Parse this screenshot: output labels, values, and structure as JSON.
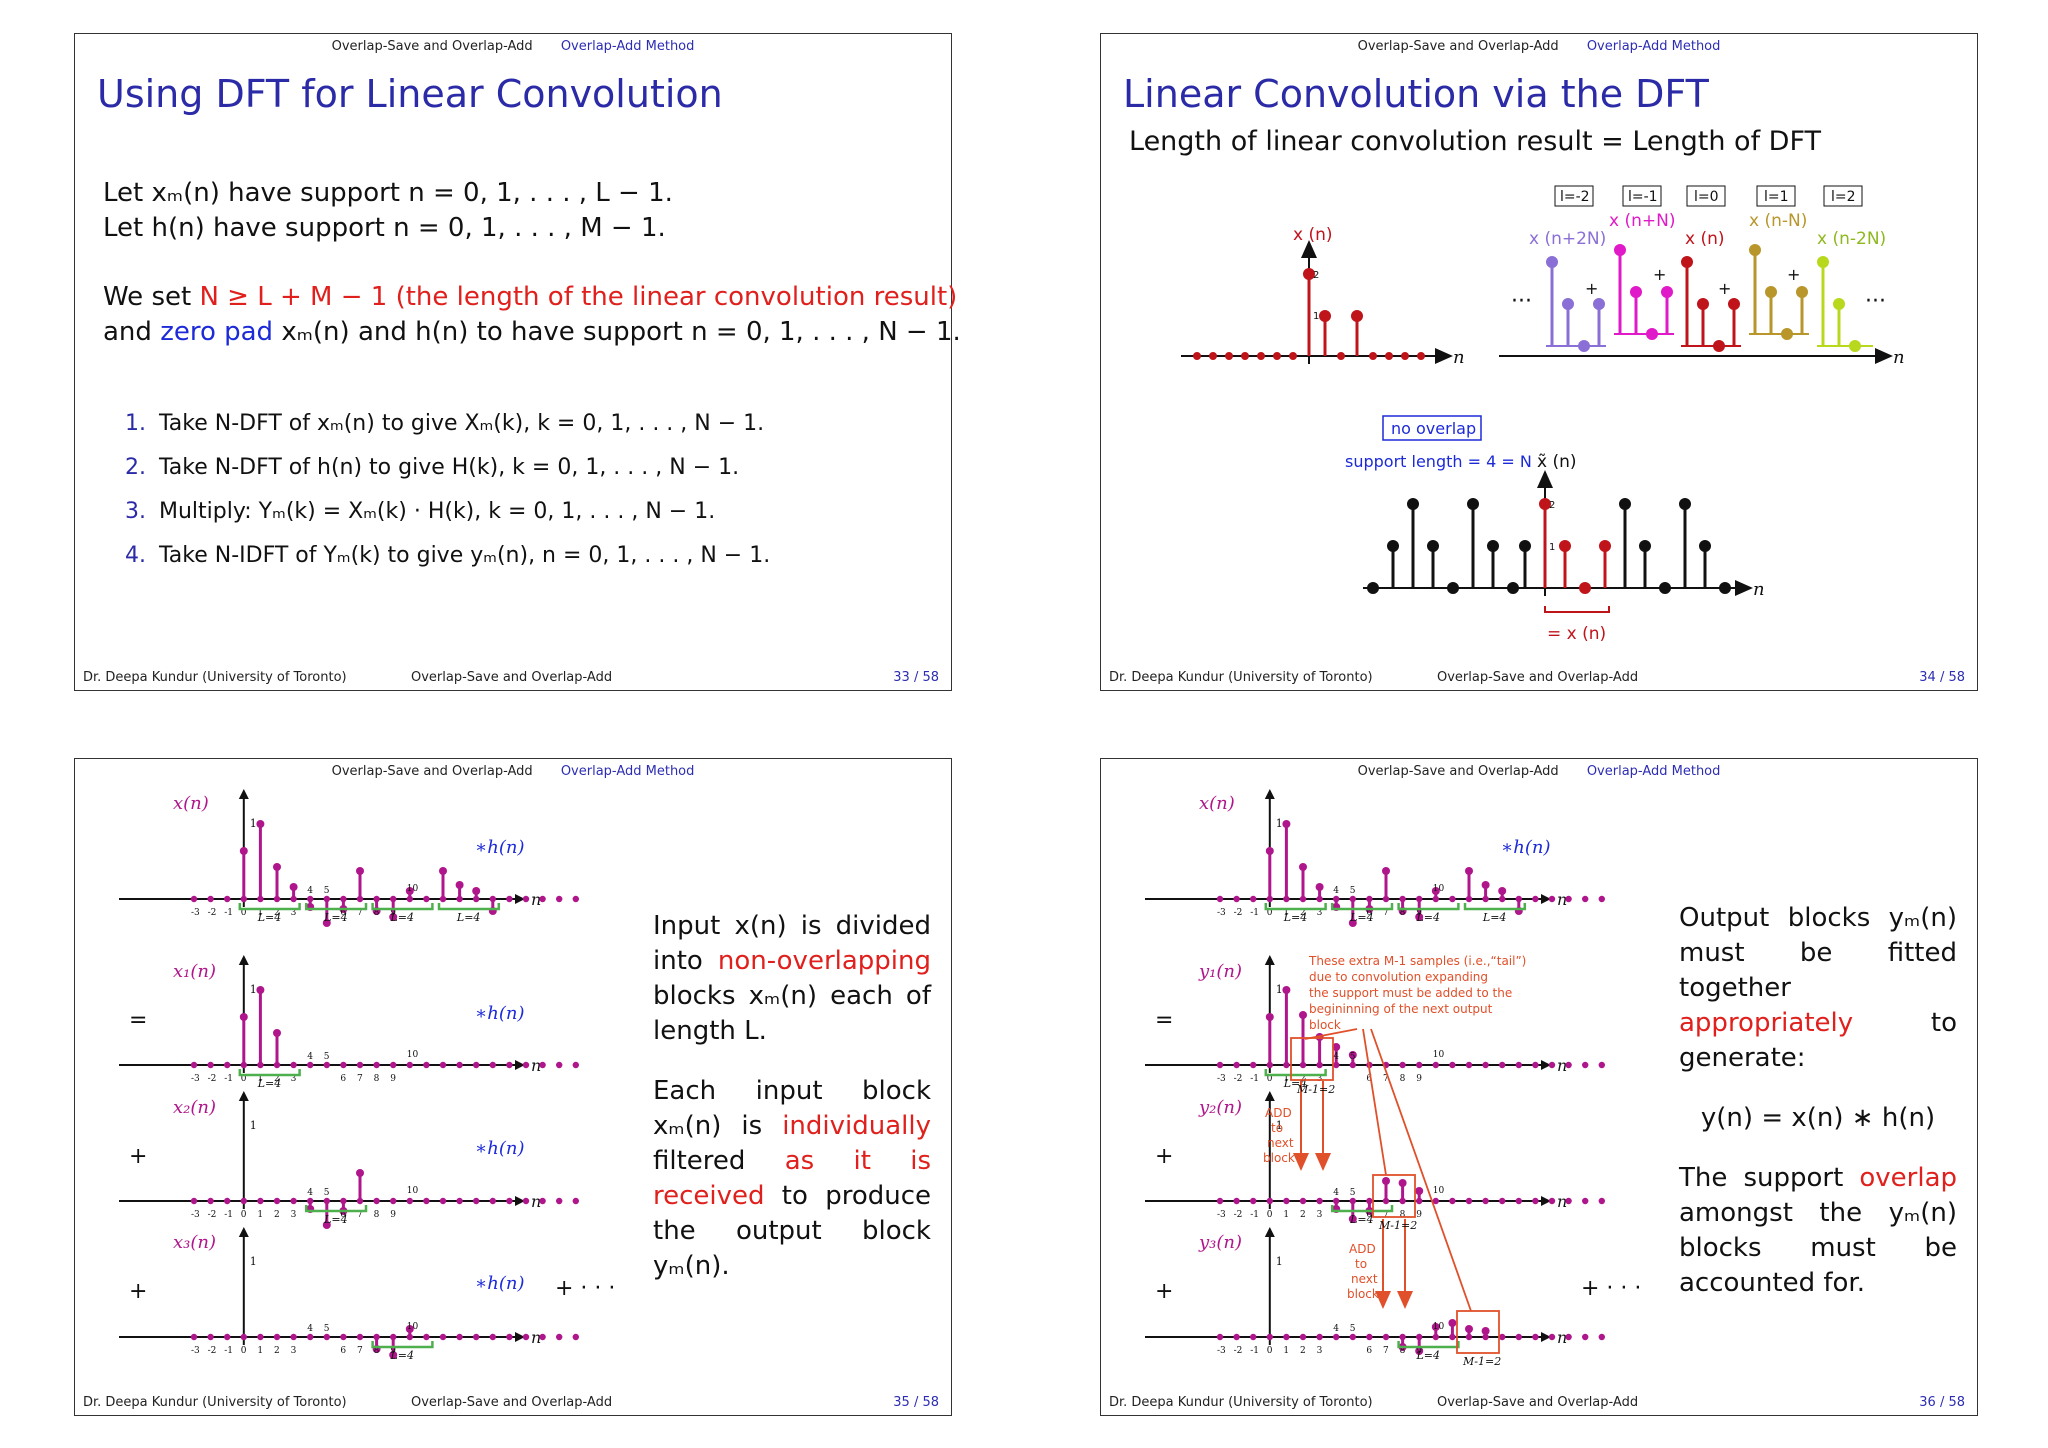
{
  "nav": {
    "section": "Overlap-Save and Overlap-Add",
    "subsection": "Overlap-Add Method"
  },
  "footer": {
    "author": "Dr. Deepa Kundur  (University of Toronto)",
    "deck": "Overlap-Save and Overlap-Add"
  },
  "slide33": {
    "title": "Using DFT for Linear Convolution",
    "page": "33 / 58",
    "p1_line1": "Let xₘ(n) have support n = 0, 1, . . . , L − 1.",
    "p1_line2": "Let h(n) have support n = 0, 1, . . . , M − 1.",
    "p2_prefix": "We set ",
    "p2_red": "N ≥ L + M − 1 (the length of the linear convolution result)",
    "p2_and": "and ",
    "p2_blue": "zero pad",
    "p2_rest": " xₘ(n) and h(n) to have support n = 0, 1, . . . , N − 1.",
    "steps": [
      {
        "num": "1.",
        "text": "Take N-DFT of xₘ(n) to give Xₘ(k),  k = 0, 1, . . . , N − 1."
      },
      {
        "num": "2.",
        "text": "Take N-DFT of h(n) to give H(k),  k = 0, 1, . . . , N − 1."
      },
      {
        "num": "3.",
        "text": "Multiply:  Yₘ(k) = Xₘ(k) · H(k),  k = 0, 1, . . . , N − 1."
      },
      {
        "num": "4.",
        "text": "Take N-IDFT of Yₘ(k) to give yₘ(n),  n = 0, 1, . . . , N − 1."
      }
    ]
  },
  "slide34": {
    "title": "Linear Convolution via the DFT",
    "subtitle": "Length of linear convolution result = Length of DFT",
    "page": "34 / 58",
    "xn_label": "x (n)",
    "tag_l_m2": "l=-2",
    "tag_l_m1": "l=-1",
    "tag_l_0": "l=0",
    "tag_l_1": "l=1",
    "tag_l_2": "l=2",
    "shift_p2N": "x (n+2N)",
    "shift_pN": "x (n+N)",
    "shift_0": "x (n)",
    "shift_mN": "x (n-N)",
    "shift_m2N": "x (n-2N)",
    "no_overlap": "no overlap",
    "support_len": "support length = 4 = N",
    "xtilde_label": "x̃ (n)",
    "eq_xn": "= x (n)",
    "axis_n": "n",
    "plus": "+",
    "ellipsis": "···",
    "val2": "2",
    "val1": "1"
  },
  "slide35": {
    "page": "35 / 58",
    "x_label": "x(n)",
    "x1_label": "x₁(n)",
    "x2_label": "x₂(n)",
    "x3_label": "x₃(n)",
    "conv_h": "∗h(n)",
    "block_len": "L=4",
    "eq": "=",
    "plus": "+",
    "plus_dots": "+ · · ·",
    "para1": "Input x(n) is divided into ",
    "para1_red": "non-overlapping",
    "para1_rest": " blocks xₘ(n) each of length L.",
    "para2": "Each input block xₘ(n) is ",
    "para2_red1": "individually",
    "para2_mid": " filtered ",
    "para2_red2": "as it is received",
    "para2_rest": " to produce the output block yₘ(n)."
  },
  "slide36": {
    "page": "36 / 58",
    "x_label": "x(n)",
    "y1_label": "y₁(n)",
    "y2_label": "y₂(n)",
    "y3_label": "y₃(n)",
    "tail_note_1": "These extra M-1 samples (i.e.,“tail”)",
    "tail_note_2": "due to convolution expanding",
    "tail_note_3": "the support must be added to the",
    "tail_note_4": "begininning of the next output",
    "tail_note_5": "block",
    "add_1": "ADD",
    "add_2": "to",
    "add_3": "next",
    "add_4": "block",
    "m1": "M-1=2",
    "para1": "Output blocks yₘ(n) must be fitted together ",
    "para1_red": "appropriately",
    "para1_rest": " to generate:",
    "equation": "y(n) = x(n) ∗ h(n)",
    "para2": "The support ",
    "para2_red": "overlap",
    "para2_rest": " amongst the yₘ(n) blocks must be accounted for."
  },
  "ticks": {
    "t_m3": "-3",
    "t_m2": "-2",
    "t_m1": "-1",
    "t0": "0",
    "t1": "1",
    "t2": "2",
    "t3": "3",
    "t4": "4",
    "t5": "5",
    "t6": "6",
    "t7": "7",
    "t8": "8",
    "t9": "9",
    "t10": "10"
  },
  "colors": {
    "title_blue": "#2b2ba8",
    "red": "#e0201c",
    "magenta": "#b0168c",
    "green": "#4db04d",
    "orange": "#e0502a"
  }
}
